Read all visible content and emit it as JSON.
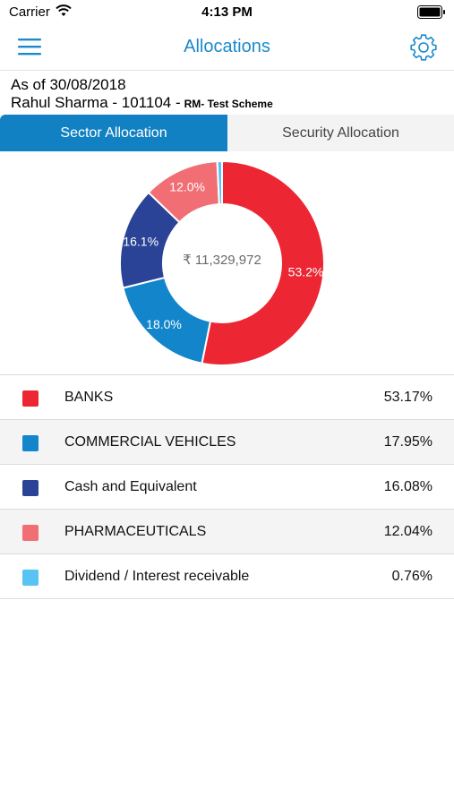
{
  "status_bar": {
    "carrier": "Carrier",
    "time": "4:13 PM"
  },
  "nav": {
    "title": "Allocations"
  },
  "info": {
    "as_of": "As of 30/08/2018",
    "holder": "Rahul Sharma - 101104 -",
    "scheme": "RM- Test Scheme"
  },
  "tabs": {
    "sector": "Sector Allocation",
    "security": "Security Allocation"
  },
  "chart_data": {
    "type": "pie",
    "center_label": "₹ 11,329,972",
    "slices": [
      {
        "name": "BANKS",
        "value": 53.17,
        "label": "53.2%",
        "color": "#ec2733"
      },
      {
        "name": "COMMERCIAL VEHICLES",
        "value": 17.95,
        "label": "18.0%",
        "color": "#1385cb"
      },
      {
        "name": "Cash and Equivalent",
        "value": 16.08,
        "label": "16.1%",
        "color": "#2a4396"
      },
      {
        "name": "PHARMACEUTICALS",
        "value": 12.04,
        "label": "12.0%",
        "color": "#f26e75"
      },
      {
        "name": "Dividend / Interest receivable",
        "value": 0.76,
        "label": "",
        "color": "#59c3f3"
      }
    ]
  },
  "legend": [
    {
      "name": "BANKS",
      "pct": "53.17%",
      "color": "#ec2733"
    },
    {
      "name": "COMMERCIAL VEHICLES",
      "pct": "17.95%",
      "color": "#1385cb"
    },
    {
      "name": "Cash and Equivalent",
      "pct": "16.08%",
      "color": "#2a4396"
    },
    {
      "name": "PHARMACEUTICALS",
      "pct": "12.04%",
      "color": "#f26e75"
    },
    {
      "name": "Dividend / Interest receivable",
      "pct": "0.76%",
      "color": "#59c3f3"
    }
  ],
  "accent_color": "#1a8acb"
}
